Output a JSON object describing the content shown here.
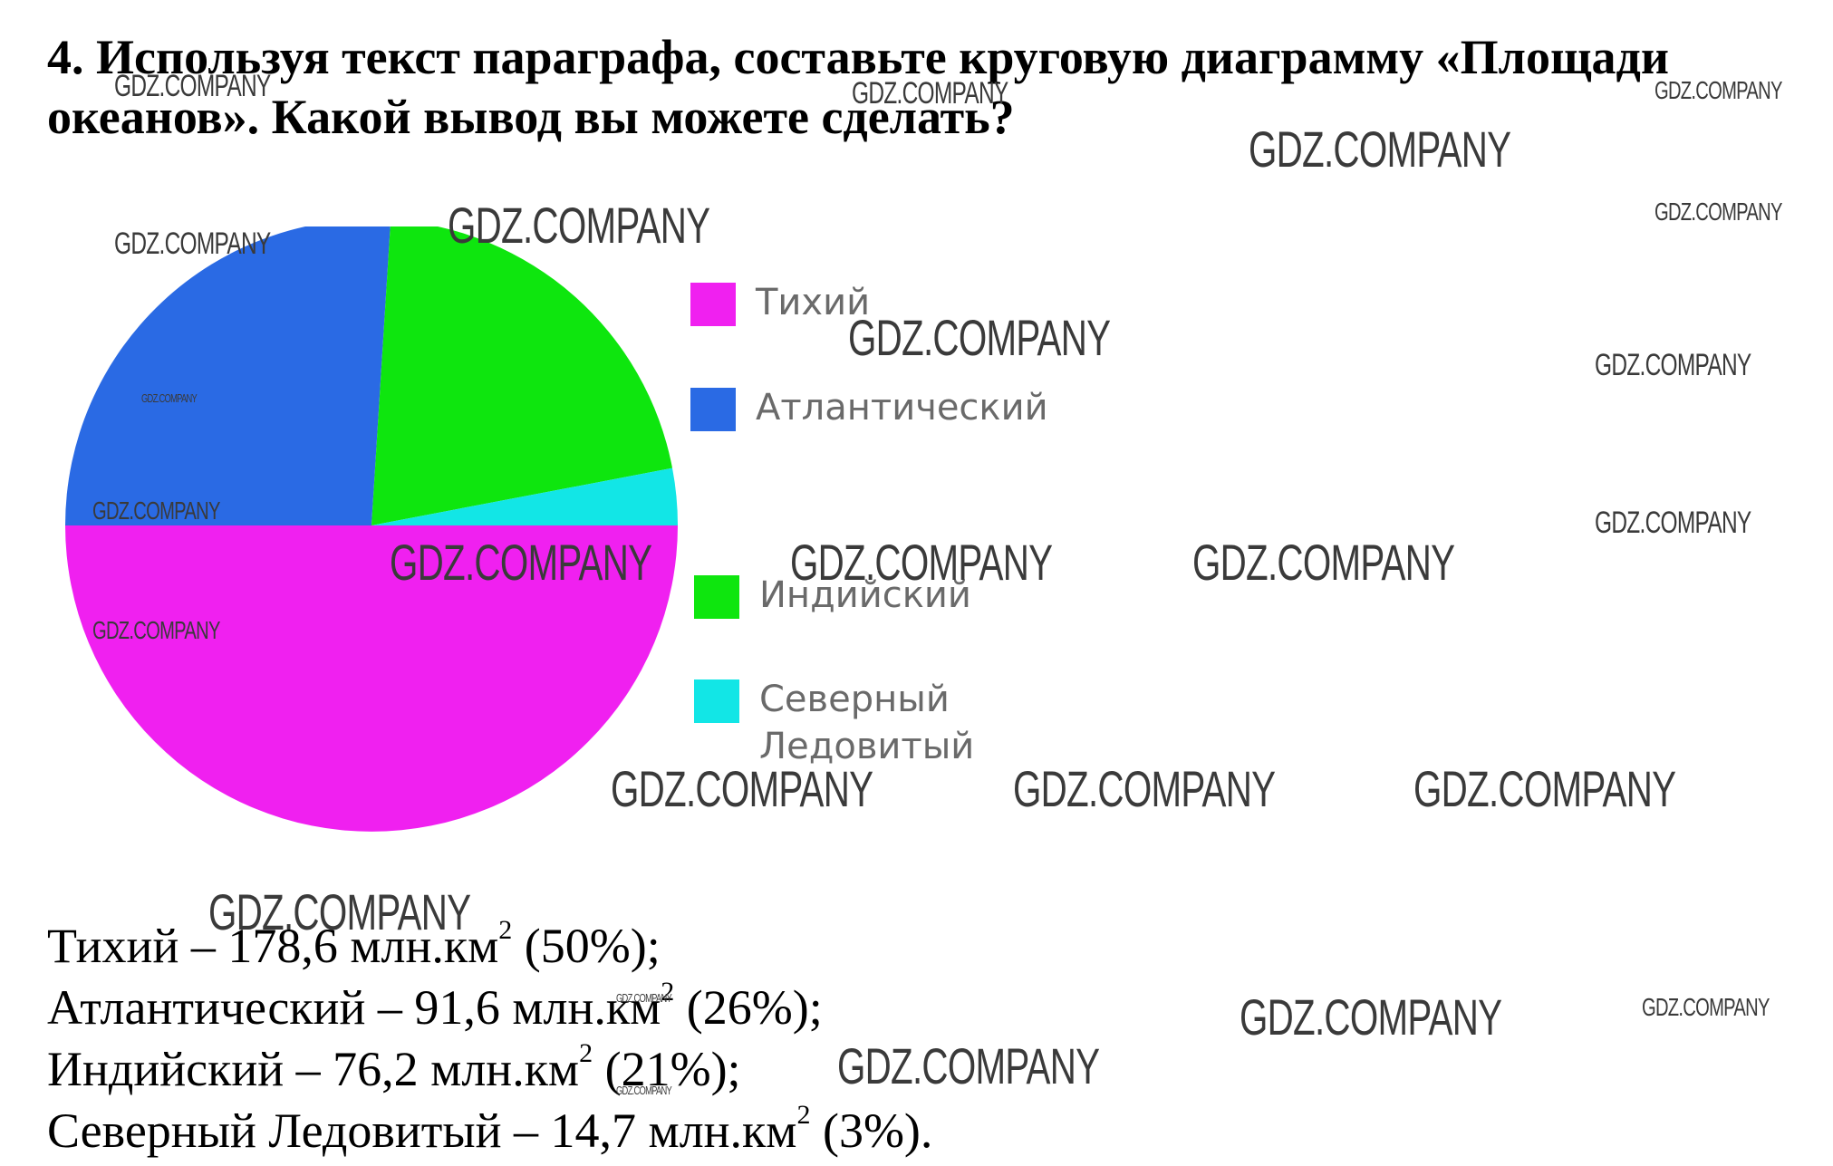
{
  "title": "4. Используя текст параграфа, составьте круговую диаграмму «Площади океанов». Какой вывод вы можете сделать?",
  "chart_data": {
    "type": "pie",
    "categories": [
      "Тихий",
      "Атлантический",
      "Индийский",
      "Северный Ледовитый"
    ],
    "values": [
      50,
      26,
      21,
      3
    ],
    "colors": [
      "#f020f0",
      "#2a6ae4",
      "#0ee60e",
      "#12e6e6"
    ],
    "legend_position": "right"
  },
  "legend": [
    {
      "label": "Тихий",
      "color": "#f020f0"
    },
    {
      "label": "Атлантический",
      "color": "#2a6ae4"
    },
    {
      "label": "Индийский",
      "color": "#0ee60e"
    },
    {
      "label": "Северный Ледовитый",
      "color": "#12e6e6"
    }
  ],
  "facts": [
    {
      "name": "Тихий",
      "value": "178,6",
      "unit": "млн.км",
      "unit_power": "2",
      "percent": "(50%);"
    },
    {
      "name": "Атлантический",
      "value": "91,6",
      "unit": "млн.км",
      "unit_power": "2",
      "percent": "(26%);"
    },
    {
      "name": "Индийский",
      "value": "76,2",
      "unit": "млн.км",
      "unit_power": "2",
      "percent": "(21%);"
    },
    {
      "name": "Северный Ледовитый",
      "value": "14,7",
      "unit": "млн.км",
      "unit_power": "2",
      "percent": "(3%)."
    }
  ],
  "watermark": "GDZ.COMPANY"
}
